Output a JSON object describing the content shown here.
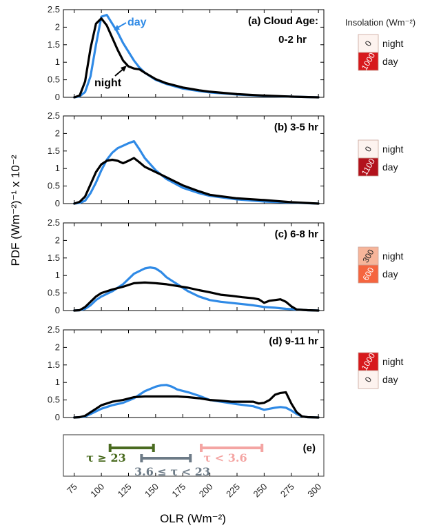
{
  "chart_data": {
    "type": "line",
    "xlabel": "OLR (Wm⁻²)",
    "ylabel": "PDF (Wm⁻²)⁻¹ x 10⁻²",
    "xlim": [
      65,
      305
    ],
    "ylim": [
      0,
      2.5
    ],
    "x_ticks": [
      75,
      100,
      125,
      150,
      175,
      200,
      225,
      250,
      275,
      300
    ],
    "y_ticks": [
      "0",
      "0.5",
      "1",
      "1.5",
      "2",
      "2.5"
    ],
    "grid": false,
    "colors": {
      "day": "#2f8ae6",
      "night": "#000000"
    },
    "insolation_title": "Insolation (Wm⁻²)",
    "panels": [
      {
        "label": "(a)",
        "title": "Cloud Age:",
        "title2": "0-2 hr",
        "annotations": {
          "day": "day",
          "night": "night"
        },
        "insolation": {
          "night": {
            "label": "night",
            "value": "0",
            "color": "#fdf3ef"
          },
          "day": {
            "label": "day",
            "value": "1000",
            "color": "#d7191c"
          }
        },
        "series": [
          {
            "name": "day",
            "x": [
              75,
              80,
              85,
              90,
              95,
              100,
              105,
              110,
              115,
              120,
              125,
              130,
              135,
              140,
              150,
              160,
              175,
              190,
              200,
              225,
              250,
              275,
              300
            ],
            "values": [
              0,
              0.03,
              0.15,
              0.6,
              1.5,
              2.3,
              2.35,
              2.1,
              1.85,
              1.55,
              1.3,
              1.05,
              0.85,
              0.7,
              0.5,
              0.38,
              0.25,
              0.18,
              0.14,
              0.08,
              0.04,
              0.02,
              0
            ]
          },
          {
            "name": "night",
            "x": [
              75,
              80,
              85,
              90,
              95,
              100,
              105,
              110,
              115,
              120,
              125,
              130,
              135,
              140,
              150,
              160,
              175,
              190,
              200,
              225,
              250,
              275,
              300
            ],
            "values": [
              0,
              0.05,
              0.45,
              1.4,
              2.1,
              2.25,
              2.05,
              1.7,
              1.35,
              1.05,
              0.88,
              0.82,
              0.8,
              0.7,
              0.52,
              0.4,
              0.28,
              0.2,
              0.16,
              0.09,
              0.05,
              0.02,
              0
            ]
          }
        ]
      },
      {
        "label": "(b)",
        "title": "3-5 hr",
        "insolation": {
          "night": {
            "label": "night",
            "value": "0",
            "color": "#fdf3ef"
          },
          "day": {
            "label": "day",
            "value": "1100",
            "color": "#b2121c"
          }
        },
        "series": [
          {
            "name": "day",
            "x": [
              75,
              80,
              85,
              90,
              95,
              100,
              105,
              110,
              115,
              120,
              125,
              130,
              135,
              140,
              150,
              160,
              175,
              190,
              200,
              225,
              250,
              275,
              300
            ],
            "values": [
              0,
              0.02,
              0.08,
              0.3,
              0.6,
              0.95,
              1.25,
              1.45,
              1.58,
              1.65,
              1.72,
              1.78,
              1.55,
              1.3,
              0.95,
              0.7,
              0.45,
              0.3,
              0.22,
              0.12,
              0.06,
              0.03,
              0
            ]
          },
          {
            "name": "night",
            "x": [
              75,
              80,
              85,
              90,
              95,
              100,
              105,
              110,
              115,
              120,
              125,
              130,
              135,
              140,
              150,
              160,
              175,
              190,
              200,
              225,
              250,
              275,
              300
            ],
            "values": [
              0,
              0.05,
              0.2,
              0.55,
              0.9,
              1.12,
              1.22,
              1.25,
              1.22,
              1.15,
              1.22,
              1.3,
              1.18,
              1.05,
              0.9,
              0.75,
              0.52,
              0.35,
              0.25,
              0.15,
              0.1,
              0.04,
              0
            ]
          }
        ]
      },
      {
        "label": "(c)",
        "title": "6-8 hr",
        "insolation": {
          "night": {
            "label": "night",
            "value": "300",
            "color": "#f7b59a"
          },
          "day": {
            "label": "day",
            "value": "600",
            "color": "#f5653f"
          }
        },
        "series": [
          {
            "name": "day",
            "x": [
              75,
              80,
              85,
              90,
              95,
              100,
              110,
              120,
              130,
              140,
              145,
              150,
              155,
              160,
              170,
              180,
              190,
              200,
              210,
              225,
              240,
              250,
              260,
              270,
              280,
              290,
              300
            ],
            "values": [
              0,
              0.01,
              0.05,
              0.15,
              0.3,
              0.4,
              0.55,
              0.75,
              1.05,
              1.2,
              1.23,
              1.2,
              1.1,
              0.95,
              0.75,
              0.55,
              0.4,
              0.3,
              0.25,
              0.2,
              0.15,
              0.1,
              0.08,
              0.05,
              0.03,
              0.01,
              0
            ]
          },
          {
            "name": "night",
            "x": [
              75,
              80,
              85,
              90,
              95,
              100,
              110,
              120,
              130,
              140,
              150,
              160,
              170,
              180,
              190,
              200,
              210,
              220,
              230,
              240,
              245,
              250,
              255,
              260,
              265,
              270,
              275,
              280,
              290,
              300
            ],
            "values": [
              0,
              0.01,
              0.1,
              0.25,
              0.4,
              0.5,
              0.6,
              0.68,
              0.78,
              0.8,
              0.78,
              0.75,
              0.7,
              0.65,
              0.58,
              0.52,
              0.45,
              0.42,
              0.38,
              0.35,
              0.32,
              0.22,
              0.28,
              0.3,
              0.32,
              0.25,
              0.12,
              0.03,
              0.01,
              0
            ]
          }
        ]
      },
      {
        "label": "(d)",
        "title": "9-11 hr",
        "insolation": {
          "night": {
            "label": "night",
            "value": "1000",
            "color": "#d7191c"
          },
          "day": {
            "label": "day",
            "value": "0",
            "color": "#fdf3ef"
          }
        },
        "series": [
          {
            "name": "day",
            "x": [
              75,
              80,
              85,
              90,
              100,
              110,
              120,
              130,
              140,
              150,
              155,
              160,
              165,
              170,
              180,
              190,
              200,
              210,
              225,
              240,
              250,
              255,
              260,
              265,
              270,
              275,
              280,
              285,
              290,
              300
            ],
            "values": [
              0,
              0.01,
              0.03,
              0.1,
              0.25,
              0.35,
              0.42,
              0.55,
              0.75,
              0.88,
              0.92,
              0.93,
              0.88,
              0.8,
              0.72,
              0.62,
              0.5,
              0.45,
              0.38,
              0.32,
              0.22,
              0.25,
              0.28,
              0.3,
              0.28,
              0.2,
              0.1,
              0.03,
              0.01,
              0
            ]
          },
          {
            "name": "night",
            "x": [
              75,
              80,
              85,
              90,
              95,
              100,
              110,
              120,
              130,
              140,
              150,
              160,
              170,
              180,
              190,
              200,
              210,
              220,
              230,
              240,
              245,
              250,
              255,
              260,
              265,
              270,
              275,
              280,
              285,
              290,
              300
            ],
            "values": [
              0,
              0.01,
              0.05,
              0.15,
              0.25,
              0.35,
              0.45,
              0.5,
              0.58,
              0.6,
              0.6,
              0.6,
              0.6,
              0.58,
              0.55,
              0.5,
              0.48,
              0.45,
              0.45,
              0.45,
              0.4,
              0.42,
              0.5,
              0.65,
              0.7,
              0.72,
              0.4,
              0.15,
              0.03,
              0.01,
              0
            ]
          }
        ]
      }
    ],
    "tau_panel": {
      "label": "(e)",
      "bars": [
        {
          "label": "τ ≥ 23",
          "xmin": 108,
          "xmax": 148,
          "color": "#4a6b20"
        },
        {
          "label": "3.6 ≤ τ < 23",
          "xmin": 137,
          "xmax": 182,
          "color": "#6d7b87"
        },
        {
          "label": "τ < 3.6",
          "xmin": 192,
          "xmax": 248,
          "color": "#f4a5a3"
        }
      ]
    }
  }
}
